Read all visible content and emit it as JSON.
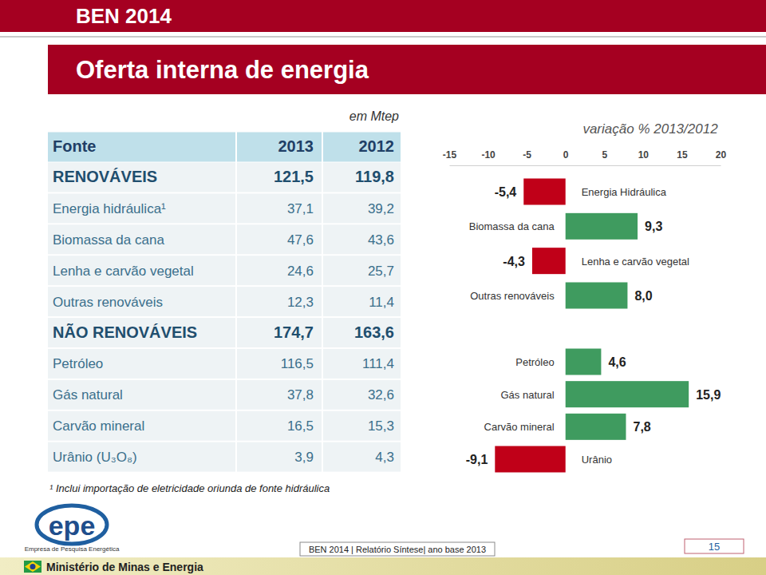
{
  "header": {
    "label": "BEN 2014",
    "title": "Oferta interna de energia"
  },
  "table": {
    "unit": "em Mtep",
    "header": [
      "Fonte",
      "2013",
      "2012"
    ],
    "sections": [
      {
        "title": [
          "RENOVÁVEIS",
          "121,5",
          "119,8"
        ],
        "rows": [
          [
            "Energia hidráulica¹",
            "37,1",
            "39,2"
          ],
          [
            "Biomassa da cana",
            "47,6",
            "43,6"
          ],
          [
            "Lenha e carvão vegetal",
            "24,6",
            "25,7"
          ],
          [
            "Outras renováveis",
            "12,3",
            "11,4"
          ]
        ]
      },
      {
        "title": [
          "NÃO RENOVÁVEIS",
          "174,7",
          "163,6"
        ],
        "rows": [
          [
            "Petróleo",
            "116,5",
            "111,4"
          ],
          [
            "Gás natural",
            "37,8",
            "32,6"
          ],
          [
            "Carvão mineral",
            "16,5",
            "15,3"
          ],
          [
            "Urânio (U₃O₈)",
            "3,9",
            "4,3"
          ]
        ]
      }
    ],
    "footnote": "¹ Inclui importação de eletricidade oriunda de fonte hidráulica"
  },
  "chart_data": {
    "type": "bar",
    "orientation": "horizontal",
    "title": "variação % 2013/2012",
    "categories": [
      "Energia Hidráulica",
      "Biomassa da cana",
      "Lenha e carvão vegetal",
      "Outras renováveis",
      "Petróleo",
      "Gás natural",
      "Carvão mineral",
      "Urânio"
    ],
    "values": [
      -5.4,
      9.3,
      -4.3,
      8.0,
      4.6,
      15.9,
      7.8,
      -9.1
    ],
    "value_labels": [
      "-5,4",
      "9,3",
      "-4,3",
      "8,0",
      "4,6",
      "15,9",
      "7,8",
      "-9,1"
    ],
    "colors": [
      "#c00018",
      "#3f9b5f",
      "#c00018",
      "#3f9b5f",
      "#3f9b5f",
      "#3f9b5f",
      "#3f9b5f",
      "#c00018"
    ],
    "xlim": [
      -15,
      20
    ],
    "xticks": [
      -15,
      -10,
      -5,
      0,
      5,
      10,
      15,
      20
    ],
    "data_labels": true,
    "grid": false,
    "tick_labels": "x"
  },
  "footer": {
    "logo": "epe",
    "logo_caption": "Empresa de Pesquisa Energética",
    "ministry": "Ministério de Minas e Energia",
    "report": "BEN 2014 | Relatório Síntese| ano base 2013",
    "page": "15"
  }
}
